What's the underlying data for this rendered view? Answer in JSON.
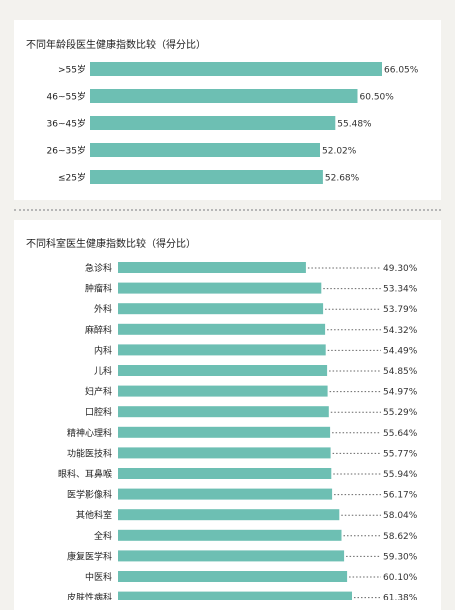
{
  "chart_data": [
    {
      "type": "bar",
      "title": "不同年龄段医生健康指数比较（得分比）",
      "categories": [
        ">55岁",
        "46~55岁",
        "36~45岁",
        "26~35岁",
        "≤25岁"
      ],
      "values": [
        66.05,
        60.5,
        55.48,
        52.02,
        52.68
      ],
      "value_labels": [
        "66.05%",
        "60.50%",
        "55.48%",
        "52.02%",
        "52.68%"
      ],
      "orientation": "horizontal",
      "color": "#6dbfb3"
    },
    {
      "type": "bar",
      "title": "不同科室医生健康指数比较（得分比）",
      "categories": [
        "急诊科",
        "肿瘤科",
        "外科",
        "麻醉科",
        "内科",
        "儿科",
        "妇产科",
        "口腔科",
        "精神心理科",
        "功能医技科",
        "眼科、耳鼻喉",
        "医学影像科",
        "其他科室",
        "全科",
        "康复医学科",
        "中医科",
        "皮肤性病科"
      ],
      "values": [
        49.3,
        53.34,
        53.79,
        54.32,
        54.49,
        54.85,
        54.97,
        55.29,
        55.64,
        55.77,
        55.94,
        56.17,
        58.04,
        58.62,
        59.3,
        60.1,
        61.38
      ],
      "value_labels": [
        "49.30%",
        "53.34%",
        "53.79%",
        "54.32%",
        "54.49%",
        "54.85%",
        "54.97%",
        "55.29%",
        "55.64%",
        "55.77%",
        "55.94%",
        "56.17%",
        "58.04%",
        "58.62%",
        "59.30%",
        "60.10%",
        "61.38%"
      ],
      "orientation": "horizontal",
      "color": "#6dbfb3"
    }
  ]
}
